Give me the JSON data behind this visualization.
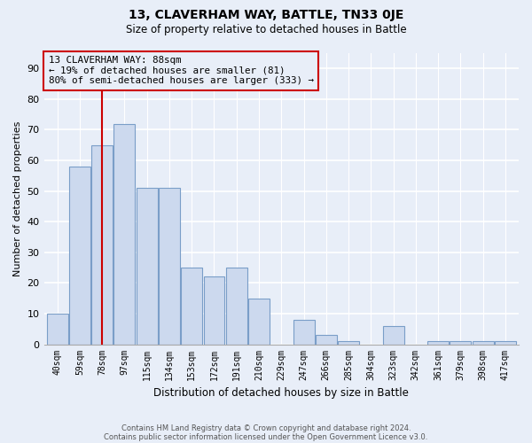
{
  "title": "13, CLAVERHAM WAY, BATTLE, TN33 0JE",
  "subtitle": "Size of property relative to detached houses in Battle",
  "xlabel": "Distribution of detached houses by size in Battle",
  "ylabel": "Number of detached properties",
  "bin_labels": [
    "40sqm",
    "59sqm",
    "78sqm",
    "97sqm",
    "115sqm",
    "134sqm",
    "153sqm",
    "172sqm",
    "191sqm",
    "210sqm",
    "229sqm",
    "247sqm",
    "266sqm",
    "285sqm",
    "304sqm",
    "323sqm",
    "342sqm",
    "361sqm",
    "379sqm",
    "398sqm",
    "417sqm"
  ],
  "bar_heights": [
    10,
    58,
    65,
    72,
    51,
    51,
    25,
    22,
    25,
    15,
    0,
    8,
    3,
    1,
    0,
    6,
    0,
    1,
    1,
    1,
    1
  ],
  "bar_color": "#ccd9ee",
  "bar_edge_color": "#7a9ec8",
  "vline_x": 2,
  "vline_color": "#cc0000",
  "ylim": [
    0,
    95
  ],
  "yticks": [
    0,
    10,
    20,
    30,
    40,
    50,
    60,
    70,
    80,
    90
  ],
  "annotation_text": "13 CLAVERHAM WAY: 88sqm\n← 19% of detached houses are smaller (81)\n80% of semi-detached houses are larger (333) →",
  "annotation_box_color": "#cc0000",
  "footnote1": "Contains HM Land Registry data © Crown copyright and database right 2024.",
  "footnote2": "Contains public sector information licensed under the Open Government Licence v3.0.",
  "background_color": "#e8eef8",
  "grid_color": "#ffffff",
  "title_fontsize": 10,
  "subtitle_fontsize": 8.5
}
